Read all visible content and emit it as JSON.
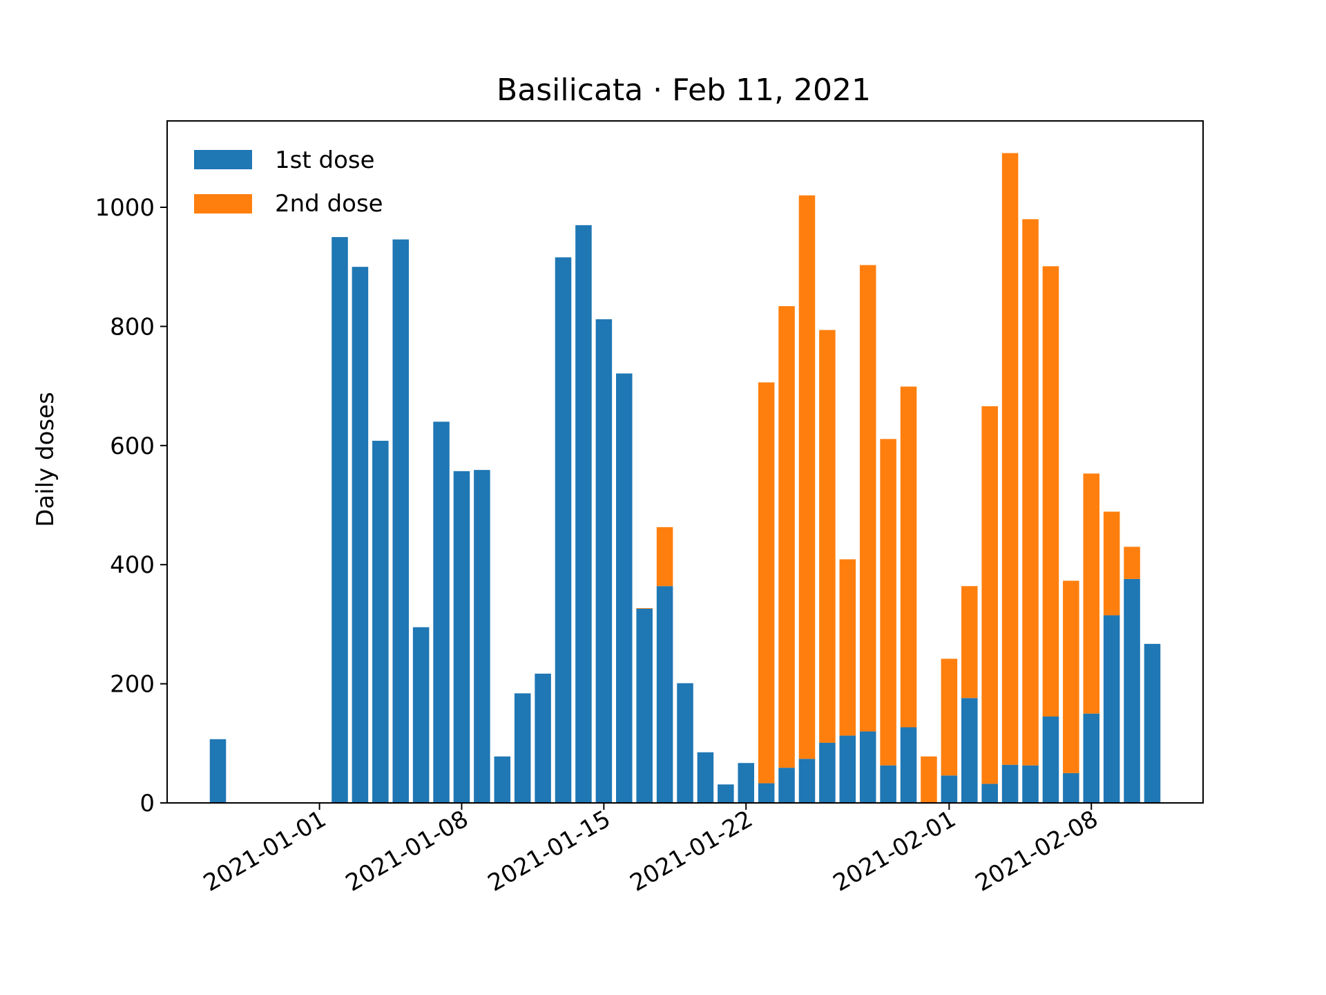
{
  "chart_data": {
    "type": "bar",
    "stacked": true,
    "title": "Basilicata · Feb 11, 2021",
    "xlabel": "",
    "ylabel": "Daily doses",
    "ylim": [
      0,
      1145
    ],
    "yticks": [
      0,
      200,
      400,
      600,
      800,
      1000
    ],
    "xlim": [
      "2020-12-24T12:00",
      "2021-02-13T12:00"
    ],
    "xticks": [
      "2021-01-01",
      "2021-01-08",
      "2021-01-15",
      "2021-01-22",
      "2021-02-01",
      "2021-02-08"
    ],
    "grid": false,
    "legend_position": "top-left",
    "x": [
      "2020-12-27",
      "2020-12-28",
      "2020-12-29",
      "2020-12-30",
      "2020-12-31",
      "2021-01-01",
      "2021-01-02",
      "2021-01-03",
      "2021-01-04",
      "2021-01-05",
      "2021-01-06",
      "2021-01-07",
      "2021-01-08",
      "2021-01-09",
      "2021-01-10",
      "2021-01-11",
      "2021-01-12",
      "2021-01-13",
      "2021-01-14",
      "2021-01-15",
      "2021-01-16",
      "2021-01-17",
      "2021-01-18",
      "2021-01-19",
      "2021-01-20",
      "2021-01-21",
      "2021-01-22",
      "2021-01-23",
      "2021-01-24",
      "2021-01-25",
      "2021-01-26",
      "2021-01-27",
      "2021-01-28",
      "2021-01-29",
      "2021-01-30",
      "2021-01-31",
      "2021-02-01",
      "2021-02-02",
      "2021-02-03",
      "2021-02-04",
      "2021-02-05",
      "2021-02-06",
      "2021-02-07",
      "2021-02-08",
      "2021-02-09",
      "2021-02-10",
      "2021-02-11"
    ],
    "series": [
      {
        "name": "1st dose",
        "color": "#1f77b4",
        "values": [
          107,
          0,
          0,
          0,
          0,
          0,
          950,
          900,
          608,
          946,
          295,
          640,
          557,
          559,
          78,
          184,
          217,
          916,
          970,
          812,
          721,
          326,
          364,
          201,
          85,
          31,
          67,
          33,
          59,
          74,
          101,
          113,
          120,
          63,
          127,
          0,
          46,
          176,
          32,
          64,
          63,
          145,
          50,
          150,
          315,
          376,
          267
        ]
      },
      {
        "name": "2nd dose",
        "color": "#ff7f0e",
        "values": [
          0,
          0,
          0,
          0,
          0,
          0,
          0,
          0,
          0,
          0,
          0,
          0,
          0,
          0,
          0,
          0,
          0,
          0,
          0,
          0,
          0,
          1,
          99,
          0,
          0,
          0,
          0,
          673,
          775,
          946,
          693,
          296,
          783,
          548,
          572,
          78,
          196,
          188,
          634,
          1027,
          917,
          756,
          323,
          403,
          174,
          54,
          0
        ]
      }
    ]
  }
}
